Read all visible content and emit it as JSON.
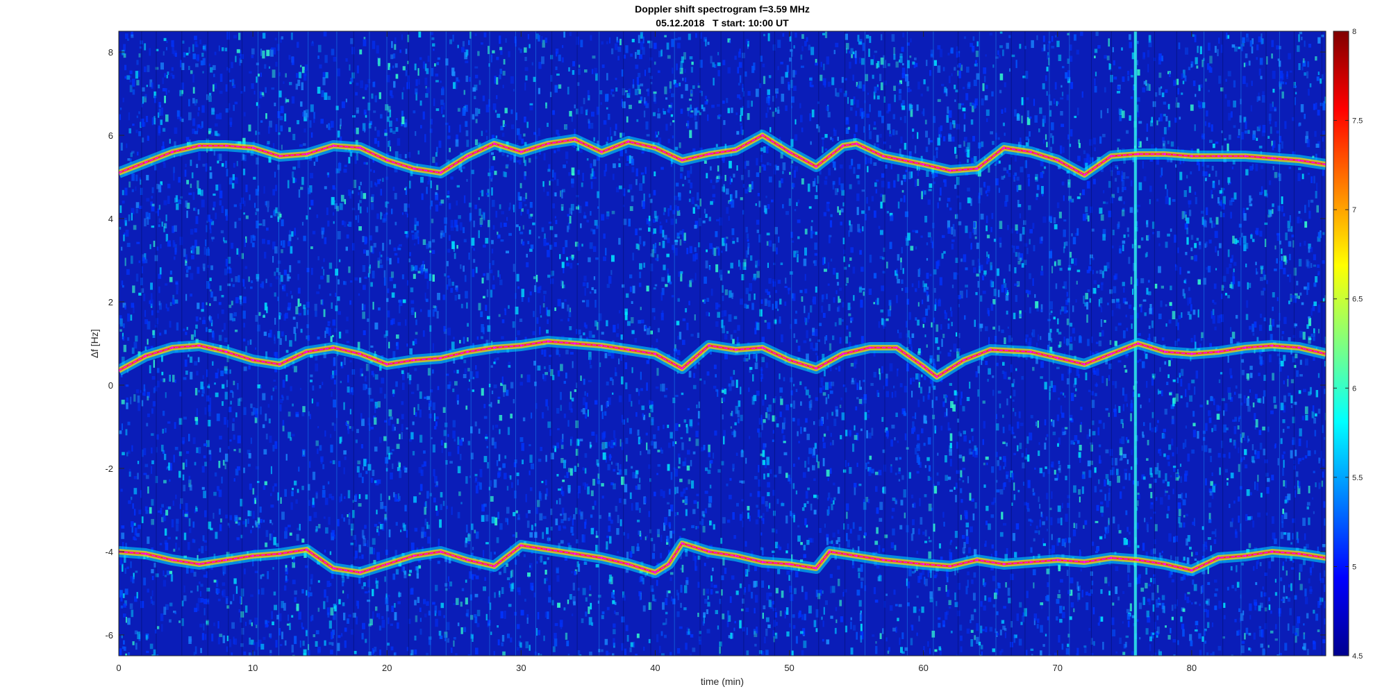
{
  "chart_data": {
    "type": "heatmap",
    "title": "Doppler shift spectrogram f=3.59 MHz",
    "subtitle": "05.12.2018   T start: 10:00 UT",
    "xlabel": "time (min)",
    "ylabel": "∆f [Hz]",
    "xlim": [
      0,
      90
    ],
    "ylim": [
      -6.5,
      8.5
    ],
    "xticks": [
      0,
      10,
      20,
      30,
      40,
      50,
      60,
      70,
      80
    ],
    "yticks": [
      -6,
      -4,
      -2,
      0,
      2,
      4,
      6,
      8
    ],
    "colorbar": {
      "colormap": "jet",
      "clim": [
        4.5,
        8
      ],
      "ticks": [
        4.5,
        5,
        5.5,
        6,
        6.5,
        7,
        7.5,
        8
      ]
    },
    "traces": [
      {
        "color": "#ff00ff",
        "style": "dashed",
        "x": [
          0,
          2,
          4,
          6,
          8,
          10,
          12,
          14,
          16,
          18,
          20,
          22,
          24,
          26,
          28,
          30,
          32,
          34,
          36,
          38,
          40,
          42,
          44,
          46,
          48,
          50,
          52,
          54,
          55,
          57,
          60,
          62,
          64,
          66,
          68,
          70,
          72,
          74,
          76,
          78,
          80,
          82,
          84,
          86,
          88,
          90
        ],
        "y": [
          5.1,
          5.35,
          5.6,
          5.75,
          5.75,
          5.7,
          5.5,
          5.55,
          5.75,
          5.7,
          5.4,
          5.2,
          5.1,
          5.5,
          5.8,
          5.6,
          5.8,
          5.9,
          5.6,
          5.85,
          5.7,
          5.4,
          5.55,
          5.65,
          6.0,
          5.6,
          5.25,
          5.75,
          5.8,
          5.5,
          5.3,
          5.15,
          5.2,
          5.7,
          5.6,
          5.4,
          5.05,
          5.5,
          5.55,
          5.55,
          5.5,
          5.5,
          5.5,
          5.45,
          5.4,
          5.3
        ]
      },
      {
        "color": "#ff00ff",
        "style": "dashed",
        "x": [
          0,
          2,
          4,
          6,
          8,
          10,
          12,
          14,
          16,
          18,
          20,
          22,
          24,
          26,
          28,
          30,
          32,
          34,
          36,
          38,
          40,
          42,
          44,
          46,
          48,
          50,
          52,
          54,
          56,
          58,
          60,
          61,
          63,
          65,
          68,
          70,
          72,
          74,
          76,
          78,
          80,
          82,
          84,
          86,
          88,
          90
        ],
        "y": [
          0.35,
          0.7,
          0.9,
          0.95,
          0.8,
          0.6,
          0.5,
          0.8,
          0.9,
          0.75,
          0.5,
          0.6,
          0.65,
          0.8,
          0.9,
          0.95,
          1.05,
          1.0,
          0.95,
          0.85,
          0.75,
          0.4,
          0.95,
          0.85,
          0.9,
          0.6,
          0.4,
          0.75,
          0.9,
          0.9,
          0.45,
          0.2,
          0.6,
          0.85,
          0.8,
          0.65,
          0.5,
          0.75,
          1.0,
          0.8,
          0.75,
          0.8,
          0.9,
          0.95,
          0.9,
          0.75
        ]
      },
      {
        "color": "#ff00ff",
        "style": "dashed",
        "x": [
          0,
          2,
          4,
          6,
          8,
          10,
          12,
          14,
          16,
          18,
          20,
          22,
          24,
          26,
          28,
          30,
          32,
          34,
          36,
          38,
          40,
          41,
          42,
          44,
          46,
          48,
          50,
          52,
          53,
          55,
          57,
          60,
          62,
          64,
          66,
          68,
          70,
          72,
          74,
          76,
          78,
          80,
          82,
          84,
          86,
          88,
          90
        ],
        "y": [
          -4.0,
          -4.05,
          -4.2,
          -4.3,
          -4.2,
          -4.1,
          -4.05,
          -3.95,
          -4.4,
          -4.5,
          -4.3,
          -4.1,
          -4.0,
          -4.2,
          -4.35,
          -3.85,
          -3.95,
          -4.05,
          -4.15,
          -4.3,
          -4.5,
          -4.3,
          -3.8,
          -4.0,
          -4.1,
          -4.25,
          -4.3,
          -4.4,
          -4.0,
          -4.1,
          -4.2,
          -4.3,
          -4.35,
          -4.2,
          -4.3,
          -4.25,
          -4.2,
          -4.25,
          -4.15,
          -4.2,
          -4.3,
          -4.45,
          -4.15,
          -4.1,
          -4.0,
          -4.05,
          -4.15
        ]
      }
    ]
  }
}
